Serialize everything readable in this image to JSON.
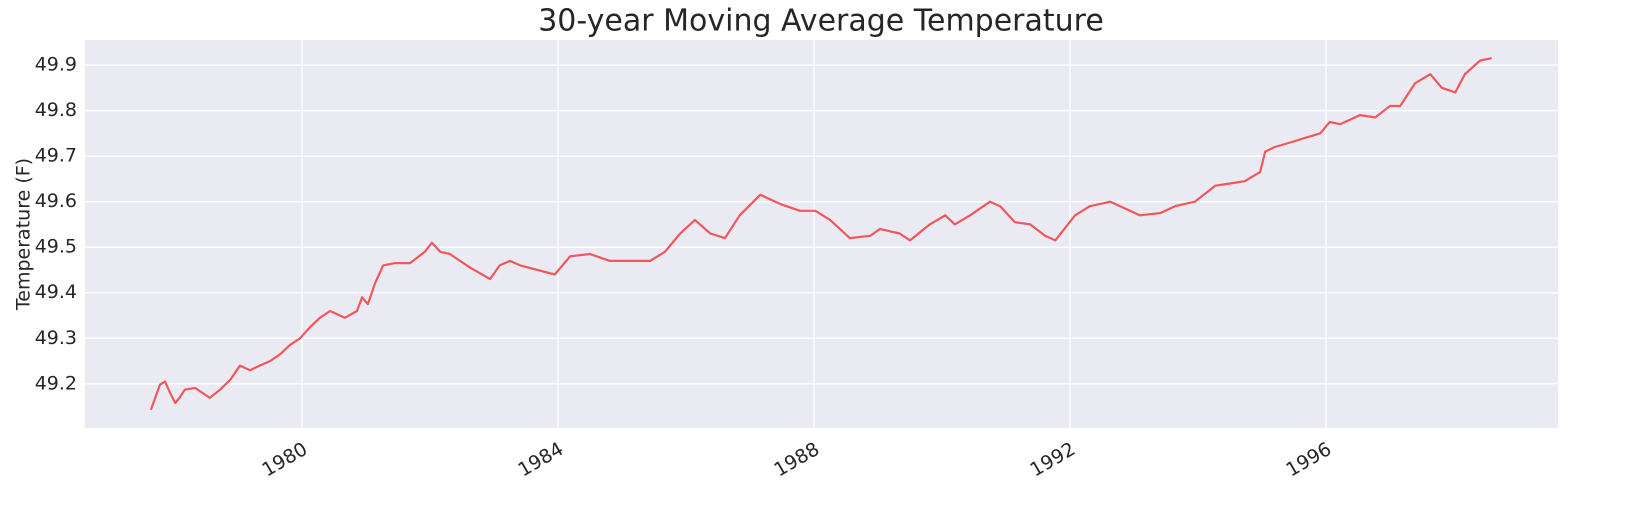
{
  "chart_data": {
    "type": "line",
    "title": "30-year Moving Average Temperature",
    "y_label": "Temperature (F)",
    "x": [
      1977.64,
      1977.78,
      1977.86,
      1977.94,
      1978.02,
      1978.09,
      1978.17,
      1978.33,
      1978.56,
      1978.72,
      1978.88,
      1979.03,
      1979.19,
      1979.34,
      1979.5,
      1979.66,
      1979.81,
      1979.97,
      1980.13,
      1980.28,
      1980.44,
      1980.67,
      1980.86,
      1980.94,
      1981.03,
      1981.14,
      1981.27,
      1981.45,
      1981.69,
      1981.92,
      1982.03,
      1982.16,
      1982.31,
      1982.63,
      1982.94,
      1983.09,
      1983.25,
      1983.41,
      1983.95,
      1984.19,
      1984.5,
      1984.81,
      1985.13,
      1985.44,
      1985.67,
      1985.91,
      1986.14,
      1986.38,
      1986.61,
      1986.84,
      1987.16,
      1987.47,
      1987.78,
      1988.02,
      1988.25,
      1988.56,
      1988.88,
      1989.03,
      1989.34,
      1989.5,
      1989.81,
      1990.05,
      1990.2,
      1990.44,
      1990.75,
      1990.91,
      1991.14,
      1991.38,
      1991.61,
      1991.77,
      1992.08,
      1992.31,
      1992.63,
      1992.86,
      1993.09,
      1993.41,
      1993.64,
      1993.95,
      1994.27,
      1994.5,
      1994.73,
      1994.97,
      1995.05,
      1995.2,
      1995.44,
      1995.67,
      1995.91,
      1996.06,
      1996.22,
      1996.53,
      1996.77,
      1997.0,
      1997.16,
      1997.39,
      1997.63,
      1997.81,
      1998.02,
      1998.17,
      1998.41,
      1998.59
    ],
    "series": [
      {
        "name": "30-year Moving Average",
        "color": "#f0585d",
        "values": [
          49.143,
          49.198,
          49.205,
          49.18,
          49.158,
          49.17,
          49.187,
          49.191,
          49.169,
          49.187,
          49.209,
          49.24,
          49.23,
          49.24,
          49.25,
          49.265,
          49.285,
          49.3,
          49.325,
          49.345,
          49.36,
          49.345,
          49.36,
          49.39,
          49.375,
          49.42,
          49.46,
          49.465,
          49.465,
          49.49,
          49.51,
          49.49,
          49.485,
          49.455,
          49.43,
          49.46,
          49.47,
          49.46,
          49.44,
          49.48,
          49.485,
          49.47,
          49.47,
          49.47,
          49.49,
          49.53,
          49.56,
          49.53,
          49.52,
          49.57,
          49.615,
          49.595,
          49.58,
          49.58,
          49.56,
          49.52,
          49.525,
          49.54,
          49.53,
          49.515,
          49.55,
          49.57,
          49.55,
          49.57,
          49.6,
          49.59,
          49.555,
          49.55,
          49.525,
          49.515,
          49.57,
          49.59,
          49.6,
          49.585,
          49.57,
          49.575,
          49.59,
          49.6,
          49.635,
          49.64,
          49.645,
          49.665,
          49.71,
          49.72,
          49.73,
          49.74,
          49.75,
          49.775,
          49.77,
          49.79,
          49.785,
          49.81,
          49.81,
          49.86,
          49.88,
          49.85,
          49.84,
          49.88,
          49.91,
          49.915
        ]
      }
    ],
    "xlim": [
      1976.61,
      1999.625
    ],
    "xticks": [
      1980,
      1984,
      1988,
      1992,
      1996
    ],
    "ylim": [
      49.103,
      49.955
    ],
    "yticks": [
      49.2,
      49.3,
      49.4,
      49.5,
      49.6,
      49.7,
      49.8,
      49.9
    ],
    "grid": true
  }
}
